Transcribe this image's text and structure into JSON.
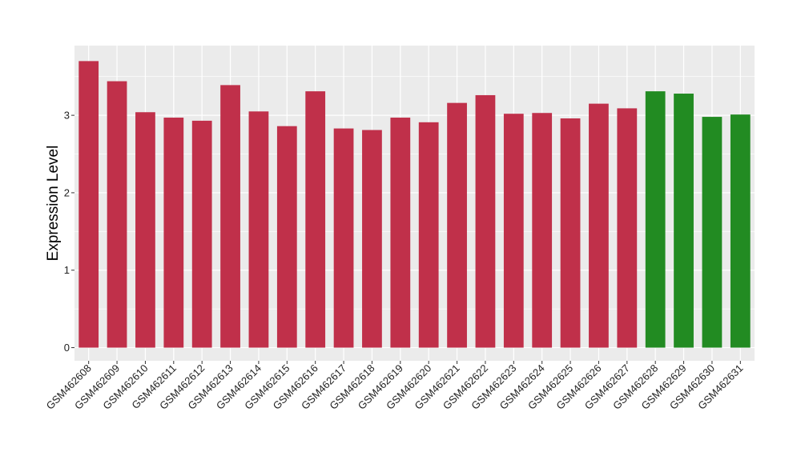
{
  "chart_data": {
    "type": "bar",
    "title": "",
    "xlabel": "",
    "ylabel": "Expression Level",
    "ylim": [
      -0.17,
      3.9
    ],
    "yticks": [
      0,
      1,
      2,
      3
    ],
    "grid": true,
    "panel_background": "#ebebeb",
    "grid_color": "#ffffff",
    "categories": [
      "GSM462608",
      "GSM462609",
      "GSM462610",
      "GSM462611",
      "GSM462612",
      "GSM462613",
      "GSM462614",
      "GSM462615",
      "GSM462616",
      "GSM462617",
      "GSM462618",
      "GSM462619",
      "GSM462620",
      "GSM462621",
      "GSM462622",
      "GSM462623",
      "GSM462624",
      "GSM462625",
      "GSM462626",
      "GSM462627",
      "GSM462628",
      "GSM462629",
      "GSM462630",
      "GSM462631"
    ],
    "values": [
      3.7,
      3.44,
      3.04,
      2.97,
      2.93,
      3.39,
      3.05,
      2.86,
      3.31,
      2.83,
      2.81,
      2.97,
      2.91,
      3.16,
      3.26,
      3.02,
      3.03,
      2.96,
      3.15,
      3.09,
      3.31,
      3.28,
      2.98,
      3.01
    ],
    "groups": [
      "a",
      "a",
      "a",
      "a",
      "a",
      "a",
      "a",
      "a",
      "a",
      "a",
      "a",
      "a",
      "a",
      "a",
      "a",
      "a",
      "a",
      "a",
      "a",
      "a",
      "b",
      "b",
      "b",
      "b"
    ],
    "colors": {
      "a": "#c0304a",
      "b": "#228b22"
    }
  }
}
